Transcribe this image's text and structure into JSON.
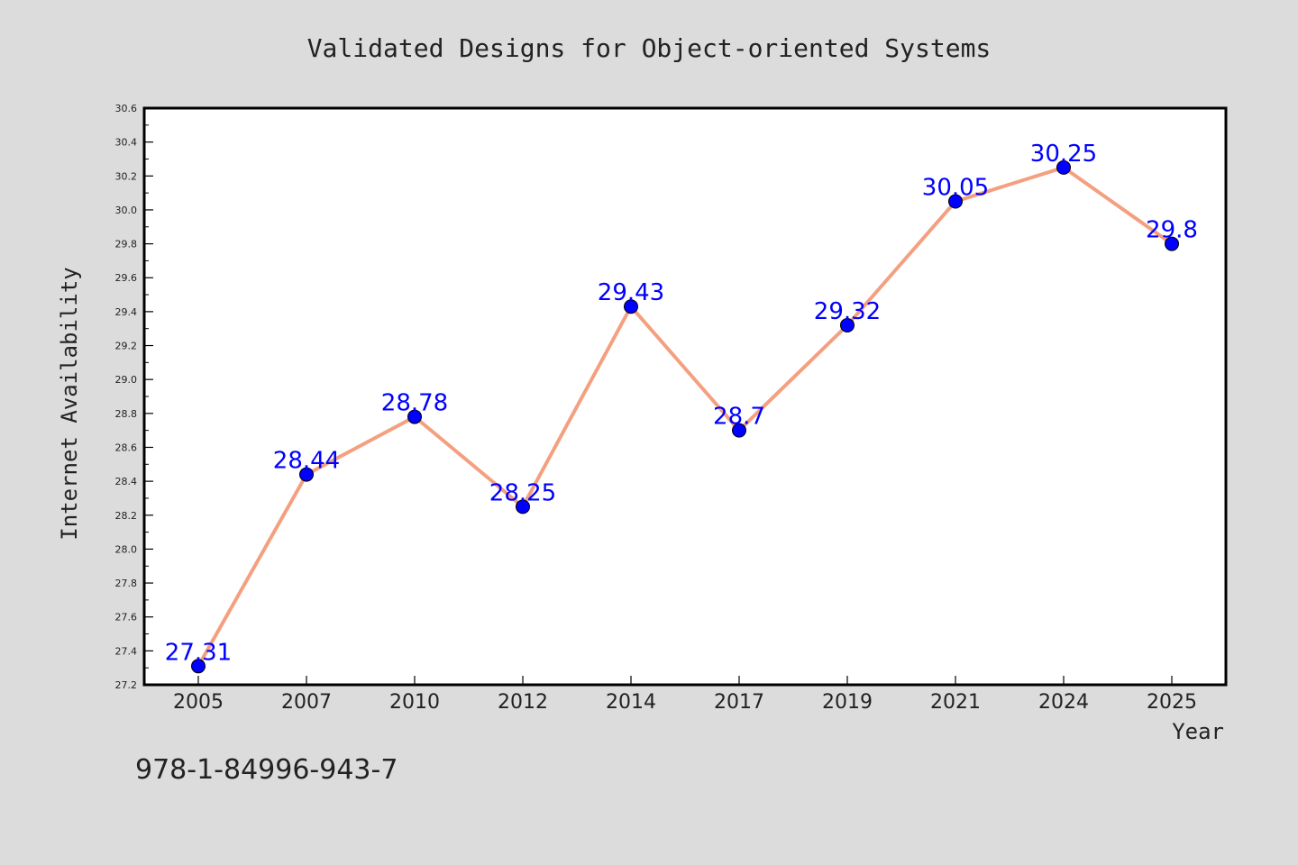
{
  "chart_data": {
    "type": "line",
    "title": "Validated Designs for Object-oriented Systems",
    "xlabel": "Year",
    "ylabel": "Internet Availability",
    "categories": [
      "2005",
      "2007",
      "2010",
      "2012",
      "2014",
      "2017",
      "2019",
      "2021",
      "2024",
      "2025"
    ],
    "series": [
      {
        "values": [
          27.31,
          28.44,
          28.78,
          28.25,
          29.43,
          28.7,
          29.32,
          30.05,
          30.25,
          29.8
        ],
        "labels": [
          "27.31",
          "28.44",
          "28.78",
          "28.25",
          "29.43",
          "28.7",
          "29.32",
          "30.05",
          "30.25",
          "29.8"
        ]
      }
    ],
    "ylim": [
      27.2,
      30.6
    ],
    "yticks": [
      "27.2",
      "27.4",
      "27.6",
      "27.8",
      "28.0",
      "28.2",
      "28.4",
      "28.6",
      "28.8",
      "29.0",
      "29.2",
      "29.4",
      "29.6",
      "29.8",
      "30.0",
      "30.2",
      "30.4",
      "30.6"
    ],
    "grid": false,
    "legend": "none",
    "annotation": "978-1-84996-943-7",
    "colors": {
      "background": "#dcdcdc",
      "plot_area": "#ffffff",
      "line": "#f4a080",
      "marker": "#0000ff",
      "data_label": "#0000ff",
      "text": "#222222"
    }
  }
}
